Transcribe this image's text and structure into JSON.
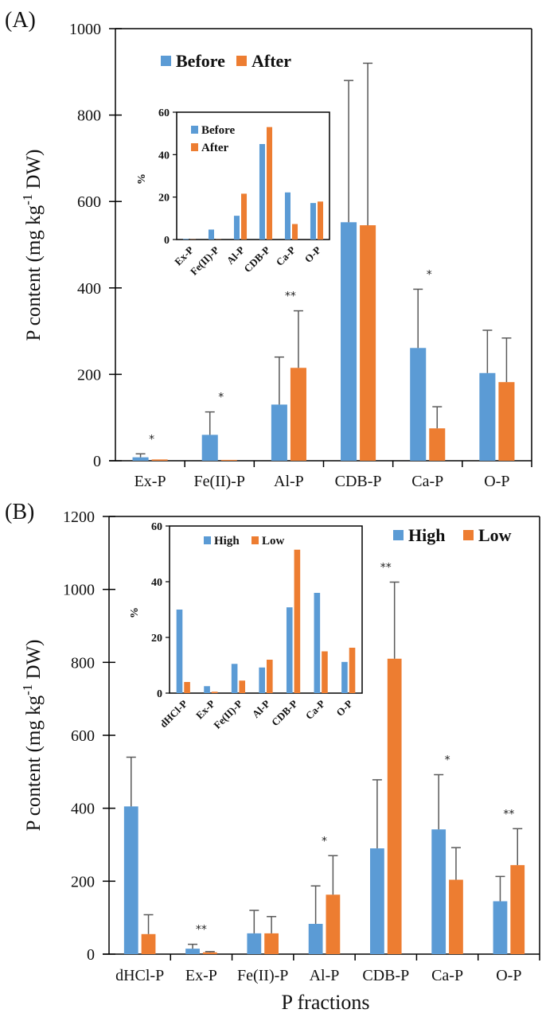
{
  "colors": {
    "series1": "#5b9bd5",
    "series2": "#ed7d31",
    "error_bar": "#595959",
    "axis": "#000000"
  },
  "chart_data": [
    {
      "type": "bar",
      "panel_label": "(A)",
      "title": "",
      "xlabel": "",
      "ylabel": "P content (mg kg-1 DW)",
      "ylabel_parts": {
        "main": "P content (mg kg",
        "sup": "-1",
        "tail": " DW)"
      },
      "ylim": [
        0,
        1000
      ],
      "yticks": [
        0,
        200,
        400,
        600,
        800,
        1000
      ],
      "legend_position": "top-left",
      "categories": [
        "Ex-P",
        "Fe(II)-P",
        "Al-P",
        "CDB-P",
        "Ca-P",
        "O-P"
      ],
      "series": [
        {
          "name": "Before",
          "values": [
            8,
            60,
            130,
            552,
            261,
            203
          ],
          "error_upper": [
            16,
            113,
            240,
            880,
            397,
            302
          ]
        },
        {
          "name": "After",
          "values": [
            3,
            2,
            215,
            545,
            75,
            182
          ],
          "error_upper": [
            3,
            2,
            347,
            920,
            125,
            284
          ]
        }
      ],
      "significance": [
        "*",
        "*",
        "**",
        "",
        "*",
        ""
      ],
      "inset": {
        "type": "bar",
        "ylabel": "%",
        "ylim": [
          0,
          60
        ],
        "yticks": [
          0,
          20,
          40,
          60
        ],
        "legend_position": "top-left",
        "categories": [
          "Ex-P",
          "Fe(II)-P",
          "Al-P",
          "CDB-P",
          "Ca-P",
          "O-P"
        ],
        "series": [
          {
            "name": "Before",
            "values": [
              0.3,
              4.7,
              11.2,
              45,
              22.2,
              17.2
            ]
          },
          {
            "name": "After",
            "values": [
              0.1,
              0.1,
              21.6,
              53,
              7.3,
              17.9
            ]
          }
        ]
      }
    },
    {
      "type": "bar",
      "panel_label": "(B)",
      "title": "",
      "xlabel": "P fractions",
      "ylabel": "P content (mg kg-1 DW)",
      "ylabel_parts": {
        "main": "P content (mg kg",
        "sup": "-1",
        "tail": " DW)"
      },
      "ylim": [
        0,
        1200
      ],
      "yticks": [
        0,
        200,
        400,
        600,
        800,
        1000,
        1200
      ],
      "legend_position": "top-right",
      "categories": [
        "dHCl-P",
        "Ex-P",
        "Fe(II)-P",
        "Al-P",
        "CDB-P",
        "Ca-P",
        "O-P"
      ],
      "series": [
        {
          "name": "High",
          "values": [
            405,
            15,
            57,
            83,
            290,
            342,
            145
          ],
          "error_upper": [
            540,
            27,
            120,
            187,
            478,
            492,
            213
          ]
        },
        {
          "name": "Low",
          "values": [
            55,
            5,
            57,
            163,
            810,
            204,
            244
          ],
          "error_upper": [
            108,
            7,
            103,
            270,
            1020,
            292,
            344
          ]
        }
      ],
      "significance": [
        "",
        "**",
        "",
        "*",
        "**",
        "*",
        "**"
      ],
      "inset": {
        "type": "bar",
        "ylabel": "%",
        "ylim": [
          0,
          60
        ],
        "yticks": [
          0,
          20,
          40,
          60
        ],
        "legend_position": "top-center",
        "categories": [
          "dHCl-P",
          "Ex-P",
          "Fe(II)-P",
          "Al-P",
          "CDB-P",
          "Ca-P",
          "O-P"
        ],
        "series": [
          {
            "name": "High",
            "values": [
              30,
              2.5,
              10.5,
              9.2,
              30.8,
              36,
              11.2
            ]
          },
          {
            "name": "Low",
            "values": [
              4,
              0.5,
              4.5,
              12,
              51.5,
              15,
              16.3
            ]
          }
        ]
      }
    }
  ]
}
